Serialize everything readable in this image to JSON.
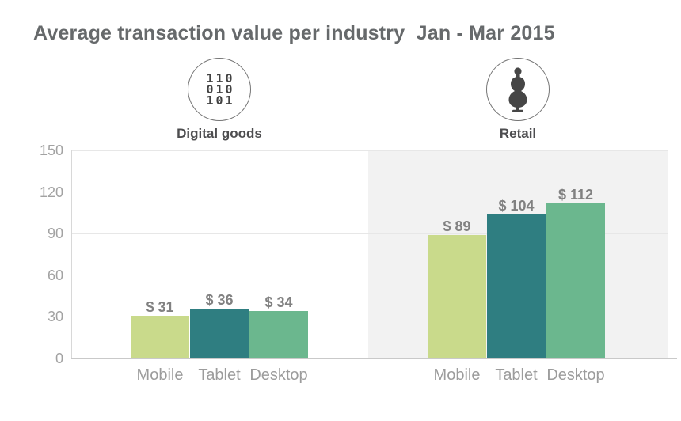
{
  "title": "Average transaction value per industry  Jan - Mar 2015",
  "industries": [
    {
      "label": "Digital goods",
      "icon": "binary-code-icon",
      "icon_lines": [
        "110",
        "010",
        "101"
      ]
    },
    {
      "label": "Retail",
      "icon": "mannequin-icon"
    }
  ],
  "chart_data": {
    "type": "bar",
    "title": "Average transaction value per industry  Jan - Mar 2015",
    "period": "Jan - Mar 2015",
    "categories": [
      "Mobile",
      "Tablet",
      "Desktop"
    ],
    "series": [
      {
        "name": "Digital goods",
        "values": [
          31,
          36,
          34
        ]
      },
      {
        "name": "Retail",
        "values": [
          89,
          104,
          112
        ]
      }
    ],
    "value_prefix": "$ ",
    "value_labels": [
      [
        "$ 31",
        "$ 36",
        "$ 34"
      ],
      [
        "$ 89",
        "$ 104",
        "$ 112"
      ]
    ],
    "ylim": [
      0,
      150
    ],
    "yticks": [
      0,
      30,
      60,
      90,
      120,
      150
    ],
    "grid": true,
    "legend": "none",
    "bar_colors": {
      "Mobile": "#c9da8b",
      "Tablet": "#2f7e81",
      "Desktop": "#6bb78e"
    }
  },
  "colors": {
    "title_text": "#66696b",
    "group_label_text": "#4d4d4f",
    "icon_glyph": "#464646",
    "icon_circle_border": "#757575",
    "bar_mobile": "#c9da8b",
    "bar_tablet": "#2f7e81",
    "bar_desktop": "#6bb78e",
    "value_label_text": "#818181",
    "axis_tick_text": "#a2a2a2",
    "category_label_text": "#9c9c9c",
    "gridline": "#e7e7e7",
    "y_axis_line": "#d8d8d8",
    "x_axis_line": "#c9c9c9",
    "highlight_panel": "#f2f2f2",
    "background": "#ffffff"
  }
}
